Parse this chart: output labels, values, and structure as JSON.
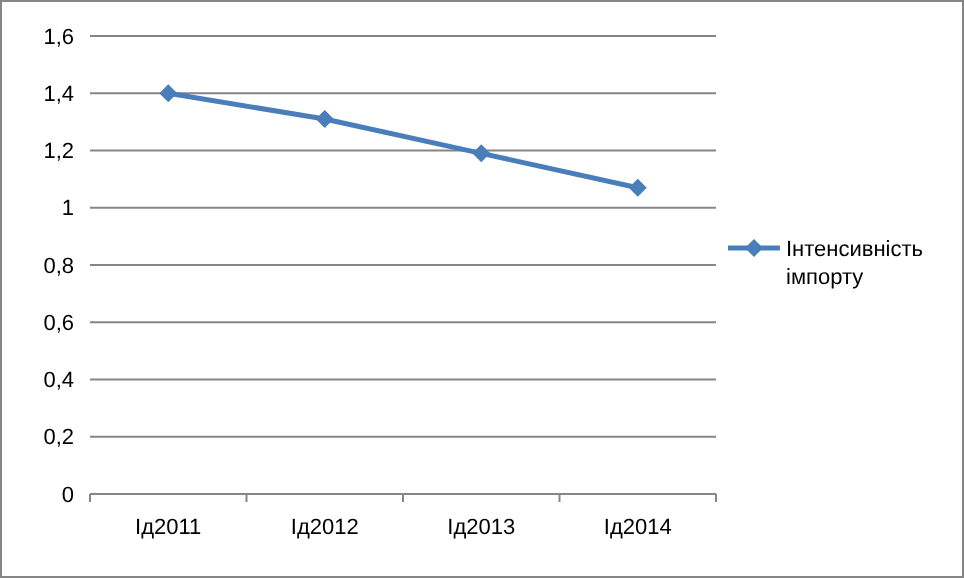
{
  "chart_data": {
    "type": "line",
    "categories": [
      "Ід2011",
      "Ід2012",
      "Ід2013",
      "Ід2014"
    ],
    "series": [
      {
        "name": "Інтенсивність імпорту",
        "color": "#4a7ebb",
        "values": [
          1.4,
          1.31,
          1.19,
          1.07
        ]
      }
    ],
    "ylim": [
      0,
      1.6
    ],
    "yticks": [
      0,
      {
        "value": 0.2,
        "label": "0,2"
      },
      {
        "value": 0.4,
        "label": "0,4"
      },
      {
        "value": 0.6,
        "label": "0,6"
      },
      {
        "value": 0.8,
        "label": "0,8"
      },
      1,
      {
        "value": 1.2,
        "label": "1,2"
      },
      {
        "value": 1.4,
        "label": "1,4"
      },
      {
        "value": 1.6,
        "label": "1,6"
      }
    ],
    "grid": "y",
    "legend": "right",
    "marker": "diamond",
    "line_style": "solid"
  }
}
